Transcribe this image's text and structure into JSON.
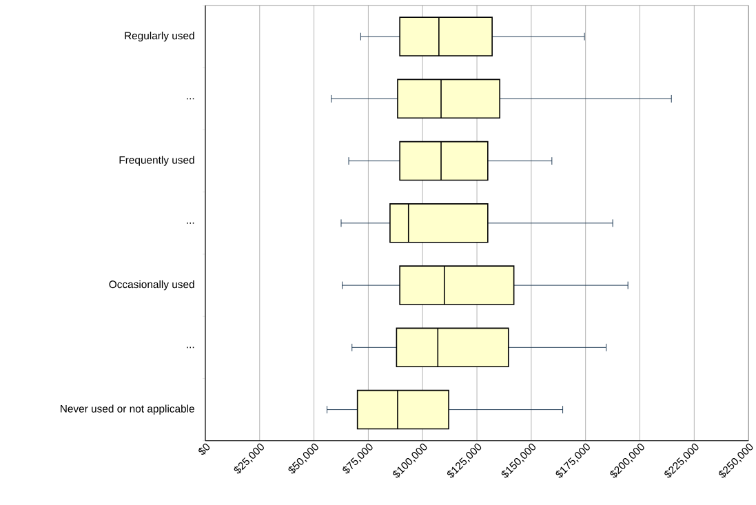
{
  "chart_data": {
    "type": "box",
    "orientation": "horizontal",
    "categories": [
      "Regularly used",
      "...",
      "Frequently used",
      "...",
      "Occasionally used",
      "...",
      "Never used or not applicable"
    ],
    "boxes": [
      {
        "low": 71500,
        "q1": 89500,
        "median": 107500,
        "q3": 132000,
        "high": 174500
      },
      {
        "low": 58000,
        "q1": 88500,
        "median": 108500,
        "q3": 135500,
        "high": 214500
      },
      {
        "low": 66000,
        "q1": 89500,
        "median": 108500,
        "q3": 130000,
        "high": 159500
      },
      {
        "low": 62500,
        "q1": 85000,
        "median": 93500,
        "q3": 130000,
        "high": 187500
      },
      {
        "low": 63000,
        "q1": 89500,
        "median": 110000,
        "q3": 142000,
        "high": 194500
      },
      {
        "low": 67500,
        "q1": 88000,
        "median": 107000,
        "q3": 139500,
        "high": 184500
      },
      {
        "low": 56000,
        "q1": 70000,
        "median": 88500,
        "q3": 112000,
        "high": 164500
      }
    ],
    "color": "#ffffcc",
    "xlim": [
      0,
      250000
    ],
    "xticks": [
      {
        "value": 0,
        "label": "$0"
      },
      {
        "value": 25000,
        "label": "$25,000"
      },
      {
        "value": 50000,
        "label": "$50,000"
      },
      {
        "value": 75000,
        "label": "$75,000"
      },
      {
        "value": 100000,
        "label": "$100,000"
      },
      {
        "value": 125000,
        "label": "$125,000"
      },
      {
        "value": 150000,
        "label": "$150,000"
      },
      {
        "value": 175000,
        "label": "$175,000"
      },
      {
        "value": 200000,
        "label": "$200,000"
      },
      {
        "value": 225000,
        "label": "$225,000"
      },
      {
        "value": 250000,
        "label": "$250,000"
      }
    ],
    "grid": "x"
  }
}
